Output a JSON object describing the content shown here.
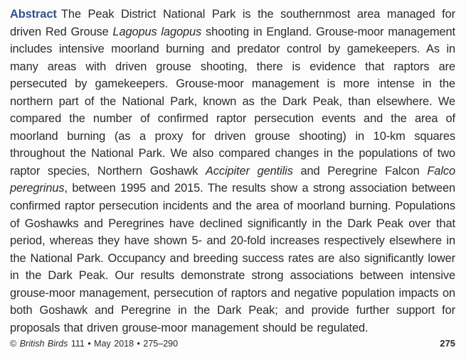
{
  "page": {
    "background_color": "#fcfcfc",
    "text_color": "#2b2b2b",
    "accent_color": "#33518a"
  },
  "abstract": {
    "label": "Abstract",
    "segments": [
      {
        "t": "The Peak District National Park is the southernmost area managed for driven Red Grouse ",
        "s": "normal"
      },
      {
        "t": "Lagopus lagopus",
        "s": "italic"
      },
      {
        "t": " shooting in England. Grouse-moor management includes intensive moorland burning and predator control by gamekeepers. As in many areas with driven grouse shooting, there is evidence that raptors are persecuted by gamekeepers. Grouse-moor management is more intense in the northern part of the National Park, known as the Dark Peak, than elsewhere. We compared the number of confirmed raptor persecution events and the area of moorland burning (as a proxy for driven grouse shooting) in 10-km squares throughout the National Park. We also compared changes in the populations of two raptor species, Northern Goshawk ",
        "s": "normal"
      },
      {
        "t": "Accipiter gentilis",
        "s": "italic"
      },
      {
        "t": " and Peregrine Falcon ",
        "s": "normal"
      },
      {
        "t": "Falco peregrinus",
        "s": "italic"
      },
      {
        "t": ", between 1995 and 2015. The results show a strong association between confirmed raptor persecution incidents and the area of moorland burning. Populations of Goshawks and Peregrines have declined significantly in the Dark Peak over that period, whereas they have shown 5- and 20-fold increases respectively elsewhere in the National Park. Occupancy and breeding success rates are also significantly lower in the Dark Peak. Our results demonstrate strong associations between intensive grouse-moor management, persecution of raptors and negative population impacts on both Goshawk and Peregrine in the Dark Peak; and provide further support for proposals that driven grouse-moor management should be regulated.",
        "s": "normal"
      }
    ]
  },
  "footer": {
    "segments": [
      {
        "t": "© ",
        "s": "normal"
      },
      {
        "t": "British Birds",
        "s": "italic"
      },
      {
        "t": " 111 • May 2018 • 275–290",
        "s": "normal"
      }
    ],
    "page_number": "275"
  }
}
